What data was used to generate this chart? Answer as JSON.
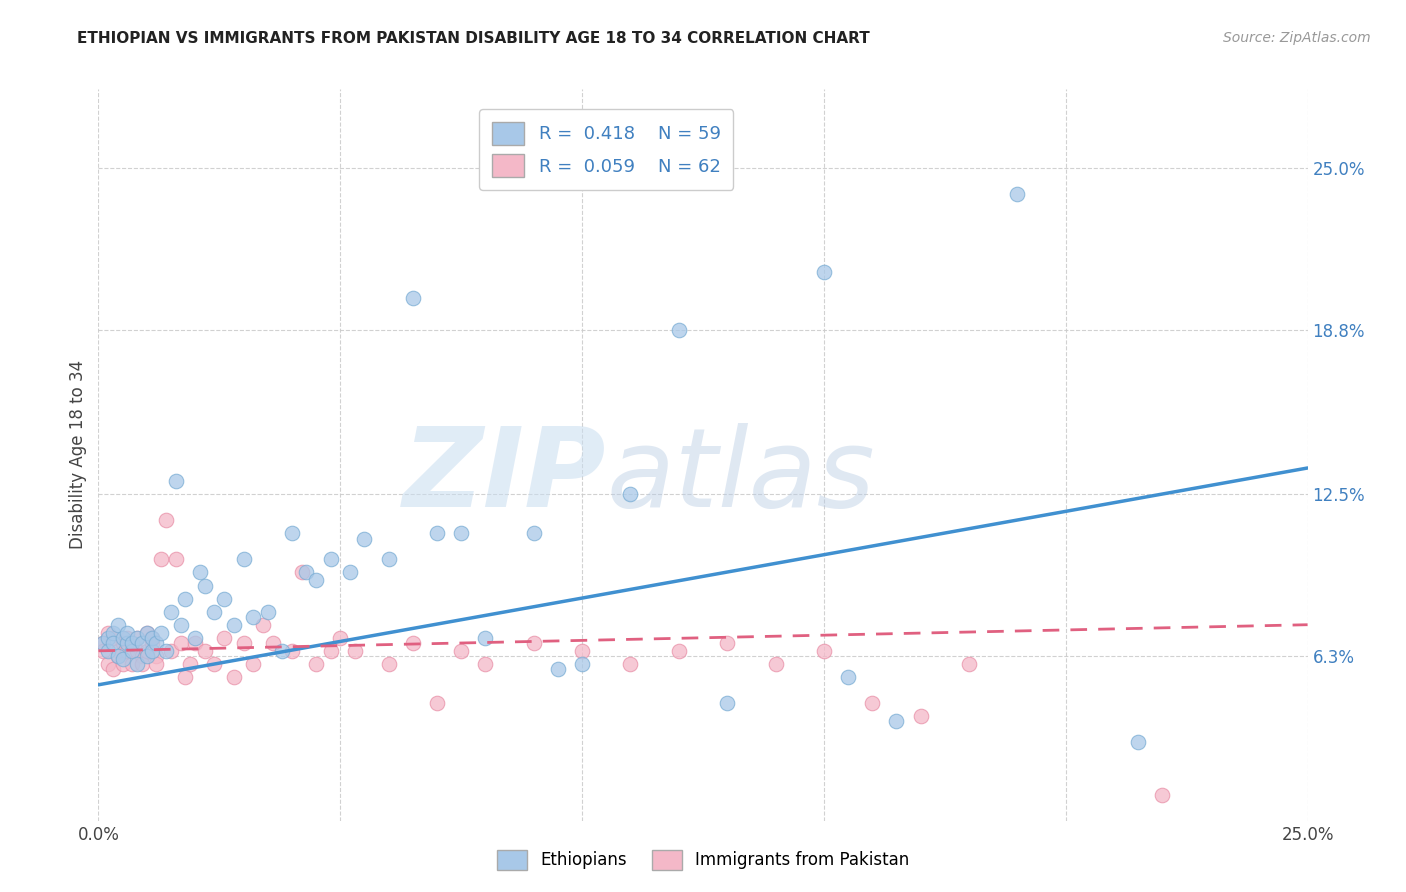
{
  "title": "ETHIOPIAN VS IMMIGRANTS FROM PAKISTAN DISABILITY AGE 18 TO 34 CORRELATION CHART",
  "source": "Source: ZipAtlas.com",
  "ylabel": "Disability Age 18 to 34",
  "xlim": [
    0.0,
    0.25
  ],
  "ylim": [
    0.0,
    0.28
  ],
  "x_tick_positions": [
    0.0,
    0.05,
    0.1,
    0.15,
    0.2,
    0.25
  ],
  "x_tick_labels": [
    "0.0%",
    "",
    "",
    "",
    "",
    "25.0%"
  ],
  "y_tick_positions": [
    0.063,
    0.125,
    0.188,
    0.25
  ],
  "y_tick_labels": [
    "6.3%",
    "12.5%",
    "18.8%",
    "25.0%"
  ],
  "R1": 0.418,
  "N1": 59,
  "R2": 0.059,
  "N2": 62,
  "color_blue": "#a8c8e8",
  "color_blue_edge": "#7aadd4",
  "color_pink": "#f4b8c8",
  "color_pink_edge": "#e890a8",
  "color_blue_line": "#4090d0",
  "color_pink_line": "#e06080",
  "background_color": "#ffffff",
  "grid_color": "#cccccc",
  "blue_trend_x": [
    0.0,
    0.25
  ],
  "blue_trend_y": [
    0.052,
    0.135
  ],
  "pink_trend_x": [
    0.0,
    0.25
  ],
  "pink_trend_y": [
    0.065,
    0.075
  ],
  "eth_x": [
    0.001,
    0.002,
    0.002,
    0.003,
    0.003,
    0.004,
    0.004,
    0.005,
    0.005,
    0.006,
    0.006,
    0.007,
    0.007,
    0.008,
    0.008,
    0.009,
    0.01,
    0.01,
    0.011,
    0.011,
    0.012,
    0.013,
    0.014,
    0.015,
    0.016,
    0.017,
    0.018,
    0.02,
    0.021,
    0.022,
    0.024,
    0.026,
    0.028,
    0.03,
    0.032,
    0.035,
    0.038,
    0.04,
    0.043,
    0.045,
    0.048,
    0.052,
    0.055,
    0.06,
    0.065,
    0.07,
    0.08,
    0.09,
    0.095,
    0.1,
    0.11,
    0.12,
    0.15,
    0.155,
    0.165,
    0.19,
    0.215,
    0.13,
    0.075
  ],
  "eth_y": [
    0.068,
    0.07,
    0.065,
    0.072,
    0.068,
    0.063,
    0.075,
    0.062,
    0.07,
    0.068,
    0.072,
    0.065,
    0.068,
    0.06,
    0.07,
    0.068,
    0.063,
    0.072,
    0.065,
    0.07,
    0.068,
    0.072,
    0.065,
    0.08,
    0.13,
    0.075,
    0.085,
    0.07,
    0.095,
    0.09,
    0.08,
    0.085,
    0.075,
    0.1,
    0.078,
    0.08,
    0.065,
    0.11,
    0.095,
    0.092,
    0.1,
    0.095,
    0.108,
    0.1,
    0.2,
    0.11,
    0.07,
    0.11,
    0.058,
    0.06,
    0.125,
    0.188,
    0.21,
    0.055,
    0.038,
    0.24,
    0.03,
    0.045,
    0.11
  ],
  "pak_x": [
    0.001,
    0.001,
    0.002,
    0.002,
    0.003,
    0.003,
    0.004,
    0.004,
    0.005,
    0.005,
    0.006,
    0.006,
    0.007,
    0.007,
    0.008,
    0.008,
    0.009,
    0.009,
    0.01,
    0.01,
    0.011,
    0.011,
    0.012,
    0.012,
    0.013,
    0.014,
    0.015,
    0.016,
    0.017,
    0.018,
    0.019,
    0.02,
    0.022,
    0.024,
    0.026,
    0.028,
    0.03,
    0.032,
    0.034,
    0.036,
    0.04,
    0.042,
    0.045,
    0.048,
    0.05,
    0.053,
    0.06,
    0.065,
    0.07,
    0.075,
    0.08,
    0.09,
    0.1,
    0.11,
    0.12,
    0.13,
    0.14,
    0.15,
    0.16,
    0.17,
    0.18,
    0.22
  ],
  "pak_y": [
    0.068,
    0.065,
    0.06,
    0.072,
    0.058,
    0.07,
    0.065,
    0.063,
    0.068,
    0.06,
    0.07,
    0.065,
    0.068,
    0.06,
    0.065,
    0.07,
    0.063,
    0.06,
    0.072,
    0.065,
    0.068,
    0.07,
    0.063,
    0.06,
    0.1,
    0.115,
    0.065,
    0.1,
    0.068,
    0.055,
    0.06,
    0.068,
    0.065,
    0.06,
    0.07,
    0.055,
    0.068,
    0.06,
    0.075,
    0.068,
    0.065,
    0.095,
    0.06,
    0.065,
    0.07,
    0.065,
    0.06,
    0.068,
    0.045,
    0.065,
    0.06,
    0.068,
    0.065,
    0.06,
    0.065,
    0.068,
    0.06,
    0.065,
    0.045,
    0.04,
    0.06,
    0.01
  ]
}
